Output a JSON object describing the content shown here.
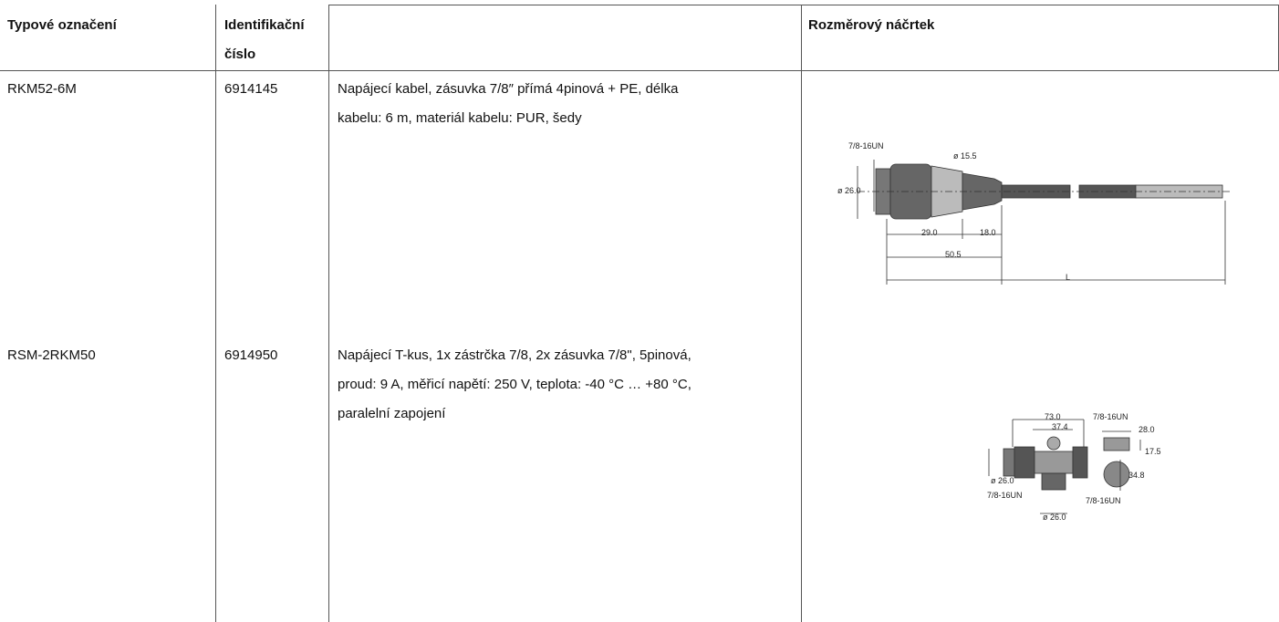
{
  "table": {
    "headers": {
      "type": "Typové označení",
      "id": "Identifikační číslo",
      "sketch": "Rozměrový náčrtek"
    },
    "rows": [
      {
        "type": "RKM52-6M",
        "id": "6914145",
        "description": [
          "Napájecí kabel, zásuvka 7/8″ přímá 4pinová + PE, délka",
          "kabelu: 6 m, materiál kabelu: PUR, šedy"
        ],
        "sketch_labels": [
          "7/8-16UN",
          "ø 15.5",
          "ø 26.0",
          "29.0",
          "18.0",
          "50.5",
          "L"
        ]
      },
      {
        "type": "RSM-2RKM50",
        "id": "6914950",
        "description": [
          "Napájecí T-kus, 1x zástrčka 7/8, 2x zásuvka 7/8\", 5pinová,",
          "proud: 9 A, měřicí napětí: 250 V, teplota: -40 °C … +80 °C,",
          "paralelní zapojení"
        ],
        "sketch_labels": [
          "73.0",
          "7/8-16UN",
          "37.4",
          "28.0",
          "17.5",
          "34.8",
          "ø 26.0",
          "7/8-16UN",
          "7/8-16UN",
          "ø 26.0"
        ]
      }
    ]
  }
}
